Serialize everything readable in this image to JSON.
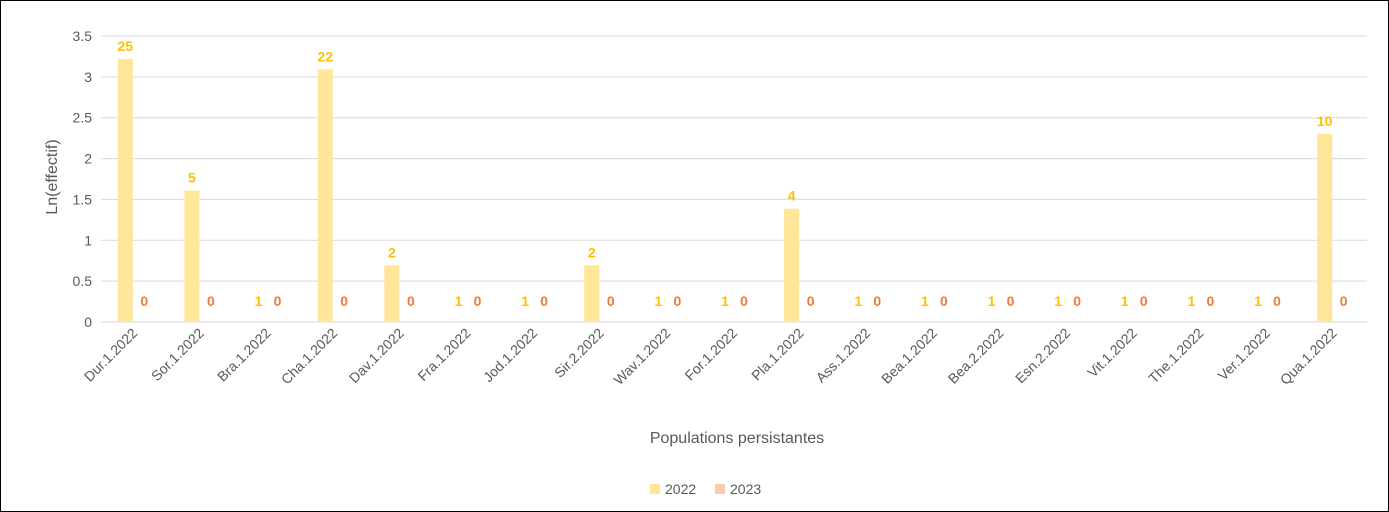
{
  "chart_data": {
    "type": "bar",
    "title": "",
    "xlabel": "Populations persistantes",
    "ylabel": "Ln(effectif)",
    "ylim": [
      0,
      3.5
    ],
    "yticks": [
      "0",
      "0.5",
      "1",
      "1.5",
      "2",
      "2.5",
      "3",
      "3.5"
    ],
    "grid": true,
    "legend_position": "bottom",
    "categories": [
      "Dur.1.2022",
      "Sor.1.2022",
      "Bra.1.2022",
      "Cha.1.2022",
      "Dav.1.2022",
      "Fra.1.2022",
      "Jod.1.2022",
      "Sir.2.2022",
      "Wav.1.2022",
      "For.1.2022",
      "Pla.1.2022",
      "Ass.1.2022",
      "Bea.1.2022",
      "Bea.2.2022",
      "Esn.2.2022",
      "Vit.1.2022",
      "The.1.2022",
      "Ver.1.2022",
      "Qua.1.2022"
    ],
    "series": [
      {
        "name": "2022",
        "color": "#FFE699",
        "label_color": "#FFC000",
        "values": [
          3.219,
          1.609,
          0,
          3.091,
          0.693,
          0,
          0,
          0.693,
          0,
          0,
          1.386,
          0,
          0,
          0,
          0,
          0,
          0,
          0,
          2.303
        ],
        "labels": [
          "25",
          "5",
          "1",
          "22",
          "2",
          "1",
          "1",
          "2",
          "1",
          "1",
          "4",
          "1",
          "1",
          "1",
          "1",
          "1",
          "1",
          "1",
          "10"
        ]
      },
      {
        "name": "2023",
        "color": "#F8CBAD",
        "label_color": "#ED7D31",
        "values": [
          0,
          0,
          0,
          0,
          0,
          0,
          0,
          0,
          0,
          0,
          0,
          0,
          0,
          0,
          0,
          0,
          0,
          0,
          0
        ],
        "labels": [
          "0",
          "0",
          "0",
          "0",
          "0",
          "0",
          "0",
          "0",
          "0",
          "0",
          "0",
          "0",
          "0",
          "0",
          "0",
          "0",
          "0",
          "0",
          "0"
        ]
      }
    ]
  }
}
